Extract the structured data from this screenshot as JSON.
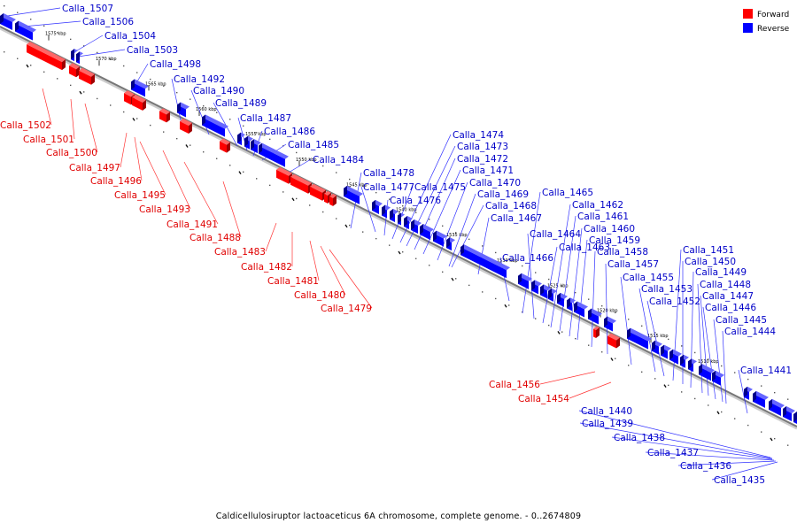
{
  "caption": "Caldicellulosiruptor lactoaceticus 6A chromosome, complete genome. - 0..2674809",
  "legend": [
    {
      "label": "Forward",
      "color": "#ff0000"
    },
    {
      "label": "Reverse",
      "color": "#0000ff"
    }
  ],
  "colors": {
    "forward": "#ff0000",
    "reverse": "#0000ff",
    "axis": "#777777"
  },
  "ticks": [
    "1575 kbp",
    "1570 kbp",
    "1565 kbp",
    "1560 kbp",
    "1555 kbp",
    "1550 kbp",
    "1545 kbp",
    "1540 kbp",
    "1535 kbp",
    "1530 kbp",
    "1525 kbp",
    "1520 kbp",
    "1515 kbp",
    "1510 kbp"
  ],
  "forward_genes": [
    "Calla_1502",
    "Calla_1501",
    "Calla_1500",
    "Calla_1497",
    "Calla_1496",
    "Calla_1495",
    "Calla_1493",
    "Calla_1491",
    "Calla_1488",
    "Calla_1483",
    "Calla_1482",
    "Calla_1481",
    "Calla_1480",
    "Calla_1479",
    "Calla_1456",
    "Calla_1454"
  ],
  "reverse_genes": [
    "Calla_1507",
    "Calla_1506",
    "Calla_1504",
    "Calla_1503",
    "Calla_1498",
    "Calla_1492",
    "Calla_1490",
    "Calla_1489",
    "Calla_1487",
    "Calla_1486",
    "Calla_1485",
    "Calla_1484",
    "Calla_1478",
    "Calla_1477",
    "Calla_1476",
    "Calla_1475",
    "Calla_1474",
    "Calla_1473",
    "Calla_1472",
    "Calla_1471",
    "Calla_1470",
    "Calla_1469",
    "Calla_1468",
    "Calla_1467",
    "Calla_1466",
    "Calla_1465",
    "Calla_1464",
    "Calla_1463",
    "Calla_1462",
    "Calla_1461",
    "Calla_1460",
    "Calla_1459",
    "Calla_1458",
    "Calla_1457",
    "Calla_1455",
    "Calla_1453",
    "Calla_1452",
    "Calla_1451",
    "Calla_1450",
    "Calla_1449",
    "Calla_1448",
    "Calla_1447",
    "Calla_1446",
    "Calla_1445",
    "Calla_1444",
    "Calla_1441",
    "Calla_1440",
    "Calla_1439",
    "Calla_1438",
    "Calla_1437",
    "Calla_1436",
    "Calla_1435"
  ]
}
